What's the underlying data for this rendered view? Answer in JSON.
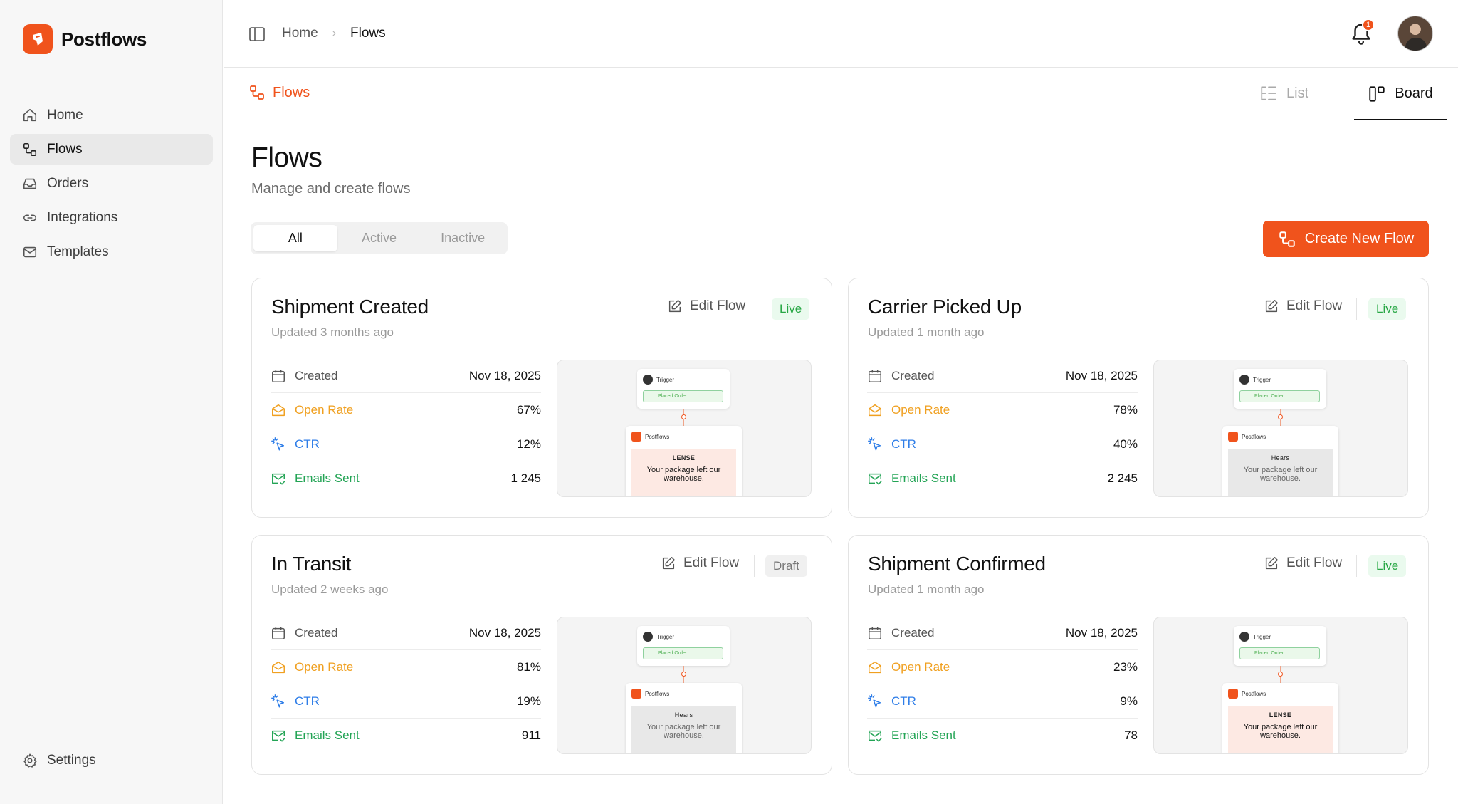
{
  "app": {
    "name": "Postflows"
  },
  "sidebar": {
    "items": [
      {
        "label": "Home",
        "icon": "home-icon"
      },
      {
        "label": "Flows",
        "icon": "flows-icon"
      },
      {
        "label": "Orders",
        "icon": "inbox-icon"
      },
      {
        "label": "Integrations",
        "icon": "link-icon"
      },
      {
        "label": "Templates",
        "icon": "mail-icon"
      }
    ],
    "active": "Flows",
    "settings_label": "Settings"
  },
  "topbar": {
    "breadcrumb": [
      "Home",
      "Flows"
    ],
    "notification_count": "1"
  },
  "subbar": {
    "title": "Flows",
    "views": {
      "list": "List",
      "board": "Board"
    },
    "active_view": "Board"
  },
  "page": {
    "title": "Flows",
    "subtitle": "Manage and create flows",
    "filters": [
      "All",
      "Active",
      "Inactive"
    ],
    "active_filter": "All",
    "create_label": "Create New Flow"
  },
  "labels": {
    "edit_flow": "Edit Flow",
    "created": "Created",
    "open_rate": "Open Rate",
    "ctr": "CTR",
    "emails_sent": "Emails Sent",
    "preview_trigger": "Trigger",
    "preview_order": "Placed Order",
    "preview_app": "Postflows",
    "preview_message": "Your package left our warehouse."
  },
  "flows": [
    {
      "title": "Shipment Created",
      "updated": "Updated 3 months ago",
      "status": "Live",
      "created": "Nov 18, 2025",
      "open_rate": "67%",
      "ctr": "12%",
      "emails_sent": "1 245",
      "preview_brand": "LENSE"
    },
    {
      "title": "Carrier Picked Up",
      "updated": "Updated 1 month ago",
      "status": "Live",
      "created": "Nov 18, 2025",
      "open_rate": "78%",
      "ctr": "40%",
      "emails_sent": "2 245",
      "preview_brand": "Hears"
    },
    {
      "title": "In Transit",
      "updated": "Updated 2 weeks ago",
      "status": "Draft",
      "created": "Nov 18, 2025",
      "open_rate": "81%",
      "ctr": "19%",
      "emails_sent": "911",
      "preview_brand": "Hears"
    },
    {
      "title": "Shipment Confirmed",
      "updated": "Updated 1 month ago",
      "status": "Live",
      "created": "Nov 18, 2025",
      "open_rate": "23%",
      "ctr": "9%",
      "emails_sent": "78",
      "preview_brand": "LENSE"
    }
  ],
  "colors": {
    "accent": "#f0531c",
    "live": "#28a745",
    "open_rate": "#f0a020",
    "ctr": "#2f7ee8",
    "emails_sent": "#23a455"
  }
}
